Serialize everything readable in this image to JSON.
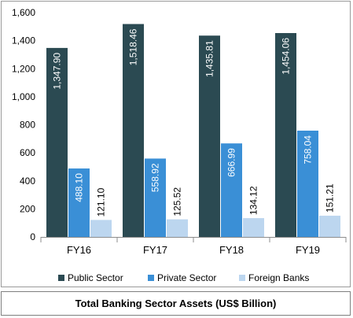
{
  "chart_data": {
    "type": "bar",
    "categories": [
      "FY16",
      "FY17",
      "FY18",
      "FY19"
    ],
    "series": [
      {
        "name": "Public Sector",
        "color": "#2b4a52",
        "values": [
          1347.9,
          1518.46,
          1435.81,
          1454.06
        ],
        "labels": [
          "1,347.90",
          "1,518.46",
          "1,435.81",
          "1,454.06"
        ],
        "label_color": "#ffffff"
      },
      {
        "name": "Private Sector",
        "color": "#3a8fd6",
        "values": [
          488.1,
          558.92,
          666.99,
          758.04
        ],
        "labels": [
          "488.10",
          "558.92",
          "666.99",
          "758.04"
        ],
        "label_color": "#ffffff"
      },
      {
        "name": "Foreign Banks",
        "color": "#bcd6ef",
        "values": [
          121.1,
          125.52,
          134.12,
          151.21
        ],
        "labels": [
          "121.10",
          "125.52",
          "134.12",
          "151.21"
        ],
        "label_color": "#000000"
      }
    ],
    "ylim": [
      0,
      1600
    ],
    "yticks": [
      0,
      200,
      400,
      600,
      800,
      1000,
      1200,
      1400,
      1600
    ],
    "ytick_labels": [
      "0",
      "200",
      "400",
      "600",
      "800",
      "1,000",
      "1,200",
      "1,400",
      "1,600"
    ],
    "grid": false,
    "legend_position": "bottom",
    "data_label_rotation": "vertical"
  },
  "caption": "Total Banking Sector Assets (US$ Billion)"
}
